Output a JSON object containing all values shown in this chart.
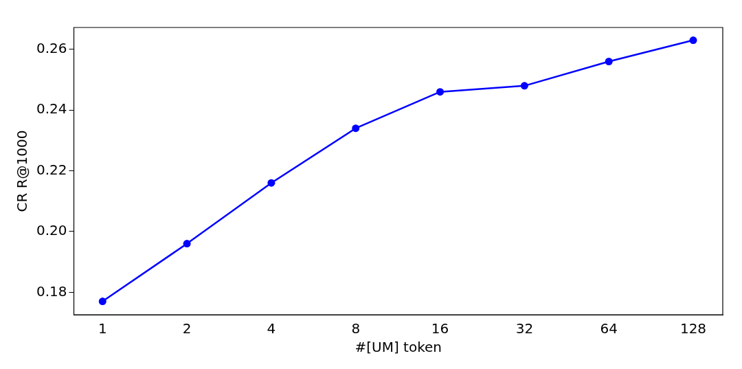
{
  "chart_data": {
    "type": "line",
    "xlabel": "#[UM] token",
    "ylabel": "CR R@1000",
    "categories": [
      "1",
      "2",
      "4",
      "8",
      "16",
      "32",
      "64",
      "128"
    ],
    "series": [
      {
        "color": "#0000ff",
        "values": [
          0.177,
          0.196,
          0.216,
          0.234,
          0.246,
          0.248,
          0.256,
          0.263
        ]
      }
    ],
    "ylim": [
      0.1726,
      0.2672
    ],
    "yticks": [
      0.18,
      {
        "value": 0.2,
        "label": "0.20"
      },
      0.22,
      0.24,
      0.26
    ],
    "grid": false,
    "legend": false,
    "marker": "circle",
    "line_style": "solid"
  }
}
